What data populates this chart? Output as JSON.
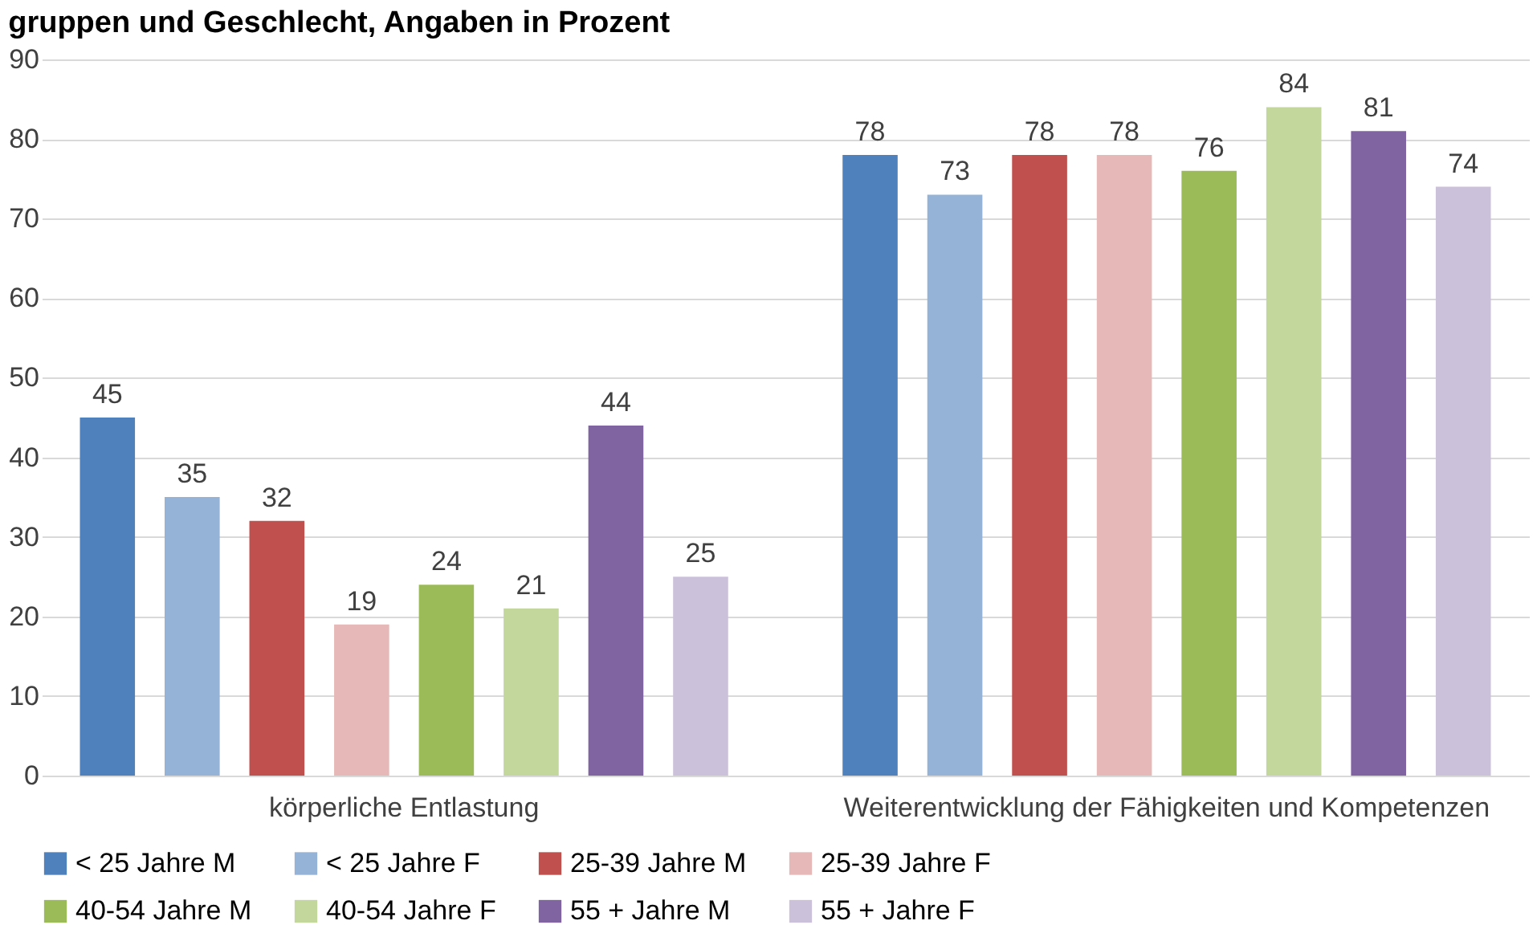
{
  "chart_data": {
    "type": "bar",
    "title": "gruppen und Geschlecht, Angaben in Prozent",
    "categories": [
      "körperliche Entlastung",
      "Weiterentwicklung der Fähigkeiten und Kompetenzen"
    ],
    "series": [
      {
        "name": "< 25 Jahre M",
        "color": "#4f81bd",
        "values": [
          45,
          78
        ]
      },
      {
        "name": "< 25 Jahre F",
        "color": "#95b3d7",
        "values": [
          35,
          73
        ]
      },
      {
        "name": "25-39 Jahre M",
        "color": "#c0504d",
        "values": [
          32,
          78
        ]
      },
      {
        "name": "25-39 Jahre F",
        "color": "#e6b9b8",
        "values": [
          19,
          78
        ]
      },
      {
        "name": "40-54 Jahre M",
        "color": "#9bbb59",
        "values": [
          24,
          76
        ]
      },
      {
        "name": "40-54 Jahre F",
        "color": "#c3d69b",
        "values": [
          21,
          84
        ]
      },
      {
        "name": "55 + Jahre M",
        "color": "#8064a2",
        "values": [
          44,
          81
        ]
      },
      {
        "name": "55 + Jahre F",
        "color": "#ccc1da",
        "values": [
          25,
          74
        ]
      }
    ],
    "ylim": [
      0,
      90
    ],
    "yticks": [
      0,
      10,
      20,
      30,
      40,
      50,
      60,
      70,
      80,
      90
    ],
    "grid": "y",
    "legend": "bottom",
    "data_labels": true
  }
}
